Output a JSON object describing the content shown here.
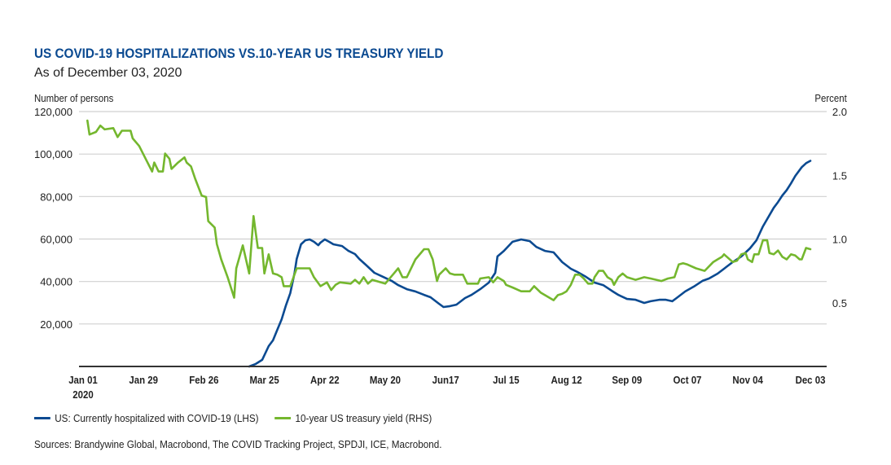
{
  "header": {
    "title": "US COVID-19 HOSPITALIZATIONS VS.10-YEAR US TREASURY YIELD",
    "subtitle": "As of December 03, 2020"
  },
  "colors": {
    "title": "#0b4a91",
    "hospitalized": "#0b4a91",
    "yield": "#74b72e",
    "grid": "#d0d0d0",
    "axis": "#333333"
  },
  "chart_data": {
    "type": "line",
    "title": "US COVID-19 HOSPITALIZATIONS VS.10-YEAR US TREASURY YIELD",
    "subtitle": "As of December 03, 2020",
    "x_unit": "days since Jan 01, 2020",
    "xlim": [
      0,
      337
    ],
    "x_ticks": [
      {
        "day": 0,
        "label": "Jan 01",
        "sublabel": "2020"
      },
      {
        "day": 28,
        "label": "Jan 29",
        "sublabel": ""
      },
      {
        "day": 56,
        "label": "Feb 26",
        "sublabel": ""
      },
      {
        "day": 84,
        "label": "Mar 25",
        "sublabel": ""
      },
      {
        "day": 112,
        "label": "Apr 22",
        "sublabel": ""
      },
      {
        "day": 140,
        "label": "May 20",
        "sublabel": ""
      },
      {
        "day": 168,
        "label": "Jun17",
        "sublabel": ""
      },
      {
        "day": 196,
        "label": "Jul 15",
        "sublabel": ""
      },
      {
        "day": 224,
        "label": "Aug 12",
        "sublabel": ""
      },
      {
        "day": 252,
        "label": "Sep 09",
        "sublabel": ""
      },
      {
        "day": 280,
        "label": "Oct 07",
        "sublabel": ""
      },
      {
        "day": 308,
        "label": "Nov 04",
        "sublabel": ""
      },
      {
        "day": 337,
        "label": "Dec 03",
        "sublabel": ""
      }
    ],
    "y_left": {
      "label": "Number of persons",
      "lim": [
        0,
        120000
      ],
      "ticks": [
        {
          "value": 20000,
          "label": "20,000"
        },
        {
          "value": 40000,
          "label": "40,000"
        },
        {
          "value": 60000,
          "label": "60,000"
        },
        {
          "value": 80000,
          "label": "80,000"
        },
        {
          "value": 100000,
          "label": "100,000"
        },
        {
          "value": 120000,
          "label": "120,000"
        }
      ]
    },
    "y_right": {
      "label": "Percent",
      "lim": [
        0,
        2.0
      ],
      "ticks": [
        {
          "value": 0.5,
          "label": "0.5"
        },
        {
          "value": 1.0,
          "label": "1.0"
        },
        {
          "value": 1.5,
          "label": "1.5"
        },
        {
          "value": 2.0,
          "label": "2.0"
        }
      ]
    },
    "grid": true,
    "legend_position": "bottom-left",
    "series": [
      {
        "name": "US: Currently hospitalized with COVID-19 (LHS)",
        "axis": "left",
        "color_key": "hospitalized",
        "points": [
          [
            77,
            0
          ],
          [
            80,
            1200
          ],
          [
            83,
            3100
          ],
          [
            86,
            9600
          ],
          [
            88,
            12300
          ],
          [
            90,
            17300
          ],
          [
            92,
            22200
          ],
          [
            94,
            28800
          ],
          [
            96,
            34500
          ],
          [
            98,
            44100
          ],
          [
            99,
            50600
          ],
          [
            101,
            57500
          ],
          [
            103,
            59400
          ],
          [
            105,
            59800
          ],
          [
            107,
            58700
          ],
          [
            109,
            57100
          ],
          [
            110,
            58300
          ],
          [
            112,
            59800
          ],
          [
            114,
            58700
          ],
          [
            116,
            57500
          ],
          [
            120,
            56700
          ],
          [
            123,
            54400
          ],
          [
            126,
            52900
          ],
          [
            128,
            50600
          ],
          [
            131,
            47900
          ],
          [
            135,
            44100
          ],
          [
            139,
            42200
          ],
          [
            143,
            40300
          ],
          [
            146,
            38300
          ],
          [
            150,
            36400
          ],
          [
            154,
            35300
          ],
          [
            158,
            33700
          ],
          [
            161,
            32600
          ],
          [
            165,
            29500
          ],
          [
            167,
            28000
          ],
          [
            170,
            28400
          ],
          [
            173,
            29100
          ],
          [
            177,
            32200
          ],
          [
            180,
            33700
          ],
          [
            184,
            36400
          ],
          [
            188,
            39500
          ],
          [
            191,
            44100
          ],
          [
            192,
            51800
          ],
          [
            195,
            54400
          ],
          [
            199,
            58700
          ],
          [
            203,
            59800
          ],
          [
            207,
            59000
          ],
          [
            210,
            56300
          ],
          [
            214,
            54400
          ],
          [
            218,
            53700
          ],
          [
            222,
            49100
          ],
          [
            226,
            46000
          ],
          [
            229,
            44500
          ],
          [
            233,
            42200
          ],
          [
            237,
            39500
          ],
          [
            241,
            38300
          ],
          [
            245,
            35600
          ],
          [
            248,
            33700
          ],
          [
            252,
            31800
          ],
          [
            256,
            31400
          ],
          [
            260,
            29900
          ],
          [
            263,
            30700
          ],
          [
            267,
            31400
          ],
          [
            270,
            31400
          ],
          [
            273,
            30700
          ],
          [
            275,
            32200
          ],
          [
            279,
            35300
          ],
          [
            283,
            37600
          ],
          [
            287,
            40300
          ],
          [
            290,
            41400
          ],
          [
            294,
            43700
          ],
          [
            298,
            46800
          ],
          [
            301,
            49100
          ],
          [
            305,
            51800
          ],
          [
            309,
            55600
          ],
          [
            312,
            59400
          ],
          [
            315,
            65900
          ],
          [
            320,
            74700
          ],
          [
            322,
            77400
          ],
          [
            324,
            80500
          ],
          [
            326,
            83000
          ],
          [
            328,
            86200
          ],
          [
            330,
            89700
          ],
          [
            333,
            93800
          ],
          [
            335,
            95700
          ],
          [
            337,
            96800
          ]
        ]
      },
      {
        "name": "10-year US treasury yield (RHS)",
        "axis": "right",
        "color_key": "yield",
        "points": [
          [
            2,
            1.93
          ],
          [
            3,
            1.82
          ],
          [
            6,
            1.84
          ],
          [
            8,
            1.89
          ],
          [
            10,
            1.86
          ],
          [
            14,
            1.87
          ],
          [
            16,
            1.8
          ],
          [
            18,
            1.85
          ],
          [
            22,
            1.85
          ],
          [
            23,
            1.79
          ],
          [
            26,
            1.73
          ],
          [
            29,
            1.63
          ],
          [
            32,
            1.53
          ],
          [
            33,
            1.6
          ],
          [
            35,
            1.53
          ],
          [
            37,
            1.53
          ],
          [
            38,
            1.67
          ],
          [
            40,
            1.63
          ],
          [
            41,
            1.55
          ],
          [
            44,
            1.6
          ],
          [
            47,
            1.64
          ],
          [
            48,
            1.6
          ],
          [
            50,
            1.57
          ],
          [
            52,
            1.47
          ],
          [
            55,
            1.34
          ],
          [
            57,
            1.33
          ],
          [
            58,
            1.14
          ],
          [
            61,
            1.09
          ],
          [
            62,
            0.96
          ],
          [
            64,
            0.84
          ],
          [
            67,
            0.7
          ],
          [
            70,
            0.54
          ],
          [
            71,
            0.77
          ],
          [
            74,
            0.95
          ],
          [
            77,
            0.73
          ],
          [
            79,
            1.18
          ],
          [
            80,
            1.05
          ],
          [
            81,
            0.93
          ],
          [
            83,
            0.93
          ],
          [
            84,
            0.73
          ],
          [
            86,
            0.88
          ],
          [
            88,
            0.73
          ],
          [
            90,
            0.72
          ],
          [
            92,
            0.7
          ],
          [
            93,
            0.63
          ],
          [
            96,
            0.63
          ],
          [
            99,
            0.77
          ],
          [
            105,
            0.77
          ],
          [
            107,
            0.7
          ],
          [
            110,
            0.63
          ],
          [
            113,
            0.66
          ],
          [
            115,
            0.6
          ],
          [
            117,
            0.64
          ],
          [
            119,
            0.66
          ],
          [
            124,
            0.65
          ],
          [
            126,
            0.68
          ],
          [
            128,
            0.65
          ],
          [
            130,
            0.7
          ],
          [
            132,
            0.65
          ],
          [
            134,
            0.68
          ],
          [
            140,
            0.65
          ],
          [
            144,
            0.73
          ],
          [
            146,
            0.77
          ],
          [
            148,
            0.7
          ],
          [
            150,
            0.7
          ],
          [
            154,
            0.84
          ],
          [
            158,
            0.92
          ],
          [
            160,
            0.92
          ],
          [
            162,
            0.84
          ],
          [
            164,
            0.67
          ],
          [
            165,
            0.72
          ],
          [
            168,
            0.77
          ],
          [
            170,
            0.73
          ],
          [
            172,
            0.72
          ],
          [
            176,
            0.72
          ],
          [
            178,
            0.65
          ],
          [
            183,
            0.65
          ],
          [
            184,
            0.69
          ],
          [
            188,
            0.7
          ],
          [
            190,
            0.66
          ],
          [
            192,
            0.7
          ],
          [
            195,
            0.67
          ],
          [
            196,
            0.64
          ],
          [
            199,
            0.62
          ],
          [
            203,
            0.59
          ],
          [
            207,
            0.59
          ],
          [
            209,
            0.63
          ],
          [
            212,
            0.58
          ],
          [
            214,
            0.56
          ],
          [
            218,
            0.52
          ],
          [
            220,
            0.56
          ],
          [
            222,
            0.57
          ],
          [
            224,
            0.59
          ],
          [
            226,
            0.64
          ],
          [
            228,
            0.72
          ],
          [
            230,
            0.72
          ],
          [
            232,
            0.69
          ],
          [
            234,
            0.65
          ],
          [
            236,
            0.65
          ],
          [
            237,
            0.7
          ],
          [
            239,
            0.75
          ],
          [
            241,
            0.75
          ],
          [
            243,
            0.7
          ],
          [
            245,
            0.68
          ],
          [
            246,
            0.64
          ],
          [
            248,
            0.7
          ],
          [
            250,
            0.73
          ],
          [
            252,
            0.7
          ],
          [
            254,
            0.69
          ],
          [
            256,
            0.68
          ],
          [
            260,
            0.7
          ],
          [
            263,
            0.69
          ],
          [
            268,
            0.67
          ],
          [
            271,
            0.69
          ],
          [
            274,
            0.7
          ],
          [
            276,
            0.8
          ],
          [
            278,
            0.81
          ],
          [
            280,
            0.8
          ],
          [
            284,
            0.77
          ],
          [
            288,
            0.75
          ],
          [
            292,
            0.82
          ],
          [
            294,
            0.84
          ],
          [
            296,
            0.86
          ],
          [
            297,
            0.88
          ],
          [
            301,
            0.82
          ],
          [
            303,
            0.83
          ],
          [
            305,
            0.88
          ],
          [
            307,
            0.89
          ],
          [
            308,
            0.84
          ],
          [
            310,
            0.82
          ],
          [
            311,
            0.88
          ],
          [
            313,
            0.88
          ],
          [
            315,
            0.99
          ],
          [
            317,
            0.99
          ],
          [
            318,
            0.89
          ],
          [
            320,
            0.88
          ],
          [
            322,
            0.91
          ],
          [
            324,
            0.86
          ],
          [
            326,
            0.84
          ],
          [
            328,
            0.88
          ],
          [
            330,
            0.87
          ],
          [
            332,
            0.84
          ],
          [
            333,
            0.84
          ],
          [
            335,
            0.93
          ],
          [
            337,
            0.92
          ]
        ]
      }
    ]
  },
  "legend": [
    {
      "label": "US: Currently hospitalized with COVID-19 (LHS)",
      "color_key": "hospitalized"
    },
    {
      "label": "10-year US treasury yield (RHS)",
      "color_key": "yield"
    }
  ],
  "source": "Sources: Brandywine Global, Macrobond, The COVID Tracking Project, SPDJI, ICE, Macrobond."
}
